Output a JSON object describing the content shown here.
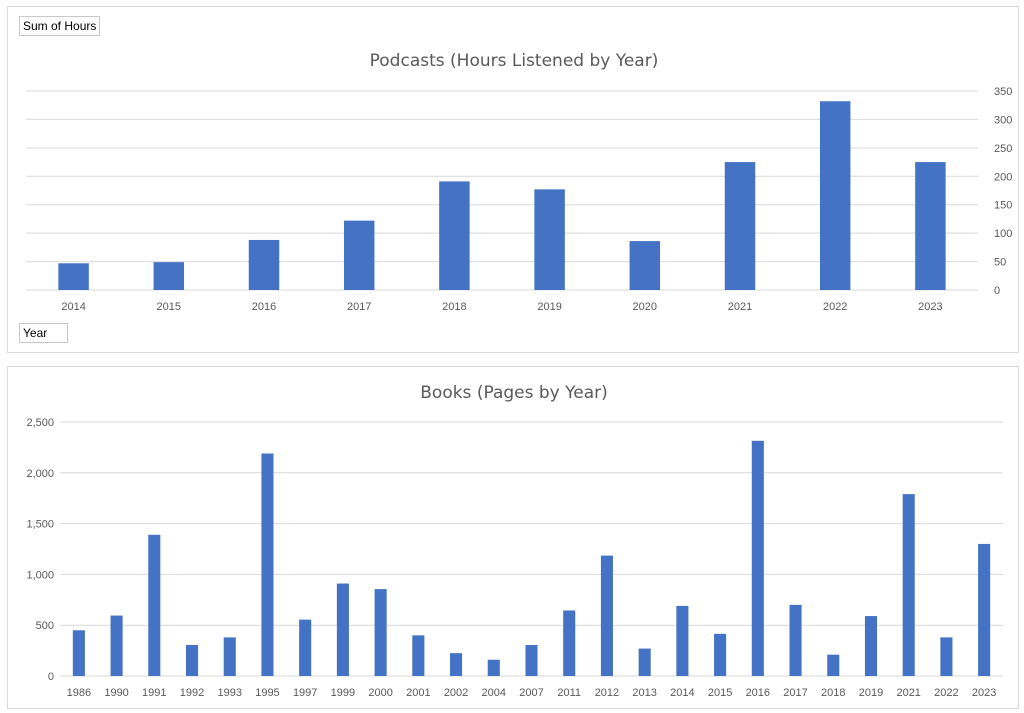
{
  "pivot_buttons": {
    "values_field": "Sum of Hours",
    "axis_field": "Year"
  },
  "chart_data": [
    {
      "type": "bar",
      "title": "Podcasts (Hours Listened by Year)",
      "xlabel": "",
      "ylabel": "",
      "y_axis_side": "right",
      "ylim": [
        0,
        350
      ],
      "yticks": [
        0,
        50,
        100,
        150,
        200,
        250,
        300,
        350
      ],
      "ytick_labels": [
        "0",
        "50",
        "100",
        "150",
        "200",
        "250",
        "300",
        "350"
      ],
      "grid": true,
      "legend": "none",
      "bar_color": "#4472C4",
      "categories": [
        "2014",
        "2015",
        "2016",
        "2017",
        "2018",
        "2019",
        "2020",
        "2021",
        "2022",
        "2023"
      ],
      "values": [
        47,
        49,
        88,
        122,
        191,
        177,
        86,
        225,
        332,
        225
      ]
    },
    {
      "type": "bar",
      "title": "Books (Pages by Year)",
      "xlabel": "",
      "ylabel": "",
      "y_axis_side": "left",
      "ylim": [
        0,
        2500
      ],
      "yticks": [
        0,
        500,
        1000,
        1500,
        2000,
        2500
      ],
      "ytick_labels": [
        "0",
        "500",
        "1,000",
        "1,500",
        "2,000",
        "2,500"
      ],
      "grid": true,
      "legend": "none",
      "bar_color": "#4472C4",
      "categories": [
        "1986",
        "1990",
        "1991",
        "1992",
        "1993",
        "1995",
        "1997",
        "1999",
        "2000",
        "2001",
        "2002",
        "2004",
        "2007",
        "2011",
        "2012",
        "2013",
        "2014",
        "2015",
        "2016",
        "2017",
        "2018",
        "2019",
        "2021",
        "2022",
        "2023"
      ],
      "values": [
        450,
        595,
        1390,
        305,
        380,
        2190,
        555,
        910,
        855,
        400,
        225,
        160,
        305,
        645,
        1185,
        270,
        690,
        415,
        2315,
        700,
        210,
        590,
        1790,
        380,
        1300
      ]
    }
  ]
}
